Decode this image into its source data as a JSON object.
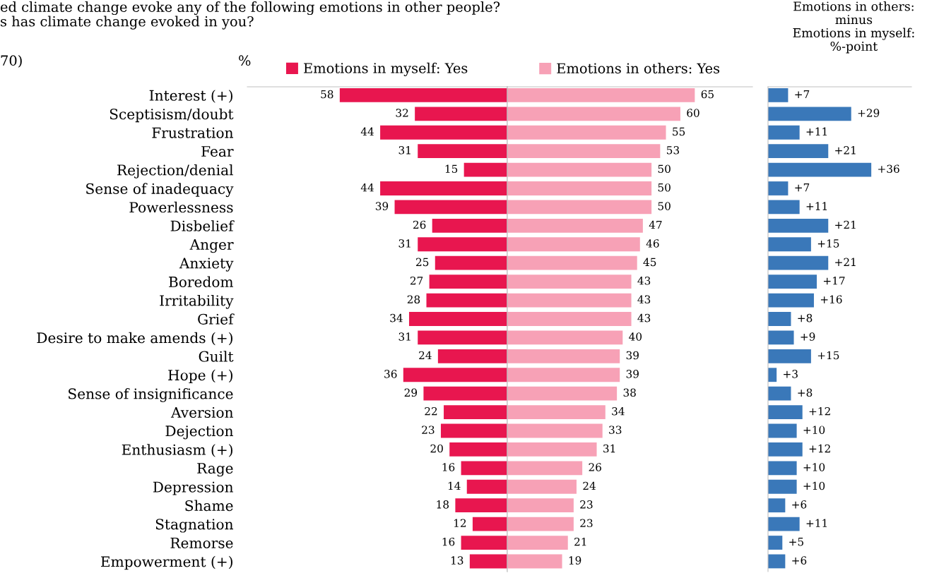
{
  "chart_data": [
    {
      "type": "bar",
      "orientation": "horizontal",
      "title": "ed climate change evoke any of the following emotions in other people?\ns has climate change evoked in you?",
      "subtitle": "70)",
      "annotations": [
        "%"
      ],
      "categories": [
        "Interest (+)",
        "Sceptisism/doubt",
        "Frustration",
        "Fear",
        "Rejection/denial",
        "Sense of inadequacy",
        "Powerlessness",
        "Disbelief",
        "Anger",
        "Anxiety",
        "Boredom",
        "Irritability",
        "Grief",
        "Desire to make amends (+)",
        "Guilt",
        "Hope (+)",
        "Sense of insignificance",
        "Aversion",
        "Dejection",
        "Enthusiasm (+)",
        "Rage",
        "Depression",
        "Shame",
        "Stagnation",
        "Remorse",
        "Empowerment (+)"
      ],
      "series": [
        {
          "name": "Emotions in myself: Yes",
          "color": "#e8164f",
          "values": [
            58,
            32,
            44,
            31,
            15,
            44,
            39,
            26,
            31,
            25,
            27,
            28,
            34,
            31,
            24,
            36,
            29,
            22,
            23,
            20,
            16,
            14,
            18,
            12,
            16,
            13
          ]
        }
      ],
      "xlim": [
        90,
        0
      ],
      "data_labels": true,
      "legend": "top",
      "tick_labels": "y"
    },
    {
      "type": "bar",
      "orientation": "horizontal",
      "categories": [
        null,
        null,
        null,
        null,
        null,
        null,
        null,
        null,
        null,
        null,
        null,
        null,
        null,
        null,
        null,
        null,
        null,
        null,
        null,
        null,
        null,
        null,
        null,
        null,
        null,
        null
      ],
      "series": [
        {
          "name": "Emotions in others: Yes",
          "color": "#f7a1b6",
          "values": [
            65,
            60,
            55,
            53,
            50,
            50,
            50,
            47,
            46,
            45,
            43,
            43,
            43,
            40,
            39,
            39,
            38,
            34,
            33,
            31,
            26,
            24,
            23,
            23,
            21,
            19
          ]
        }
      ],
      "xlim": [
        0,
        85
      ],
      "data_labels": true,
      "legend": "top",
      "tick_labels": false
    },
    {
      "type": "bar",
      "orientation": "horizontal",
      "title": "Emotions in others:\nminus\nEmotions in myself:\n%-point",
      "categories": [
        null,
        null,
        null,
        null,
        null,
        null,
        null,
        null,
        null,
        null,
        null,
        null,
        null,
        null,
        null,
        null,
        null,
        null,
        null,
        null,
        null,
        null,
        null,
        null,
        null,
        null
      ],
      "series": [
        {
          "color": "#3a78b9",
          "values": [
            7,
            29,
            11,
            21,
            36,
            7,
            11,
            21,
            15,
            21,
            17,
            16,
            8,
            9,
            15,
            3,
            8,
            12,
            10,
            12,
            10,
            10,
            6,
            11,
            5,
            6
          ],
          "value_labels": [
            "+7",
            "+29",
            "+11",
            "+21",
            "+36",
            "+7",
            "+11",
            "+21",
            "+15",
            "+21",
            "+17",
            "+16",
            "+8",
            "+9",
            "+15",
            "+3",
            "+8",
            "+12",
            "+10",
            "+12",
            "+10",
            "+10",
            "+6",
            "+11",
            "+5",
            "+6"
          ]
        }
      ],
      "xlim": [
        0,
        50
      ],
      "tick_labels": false
    }
  ]
}
